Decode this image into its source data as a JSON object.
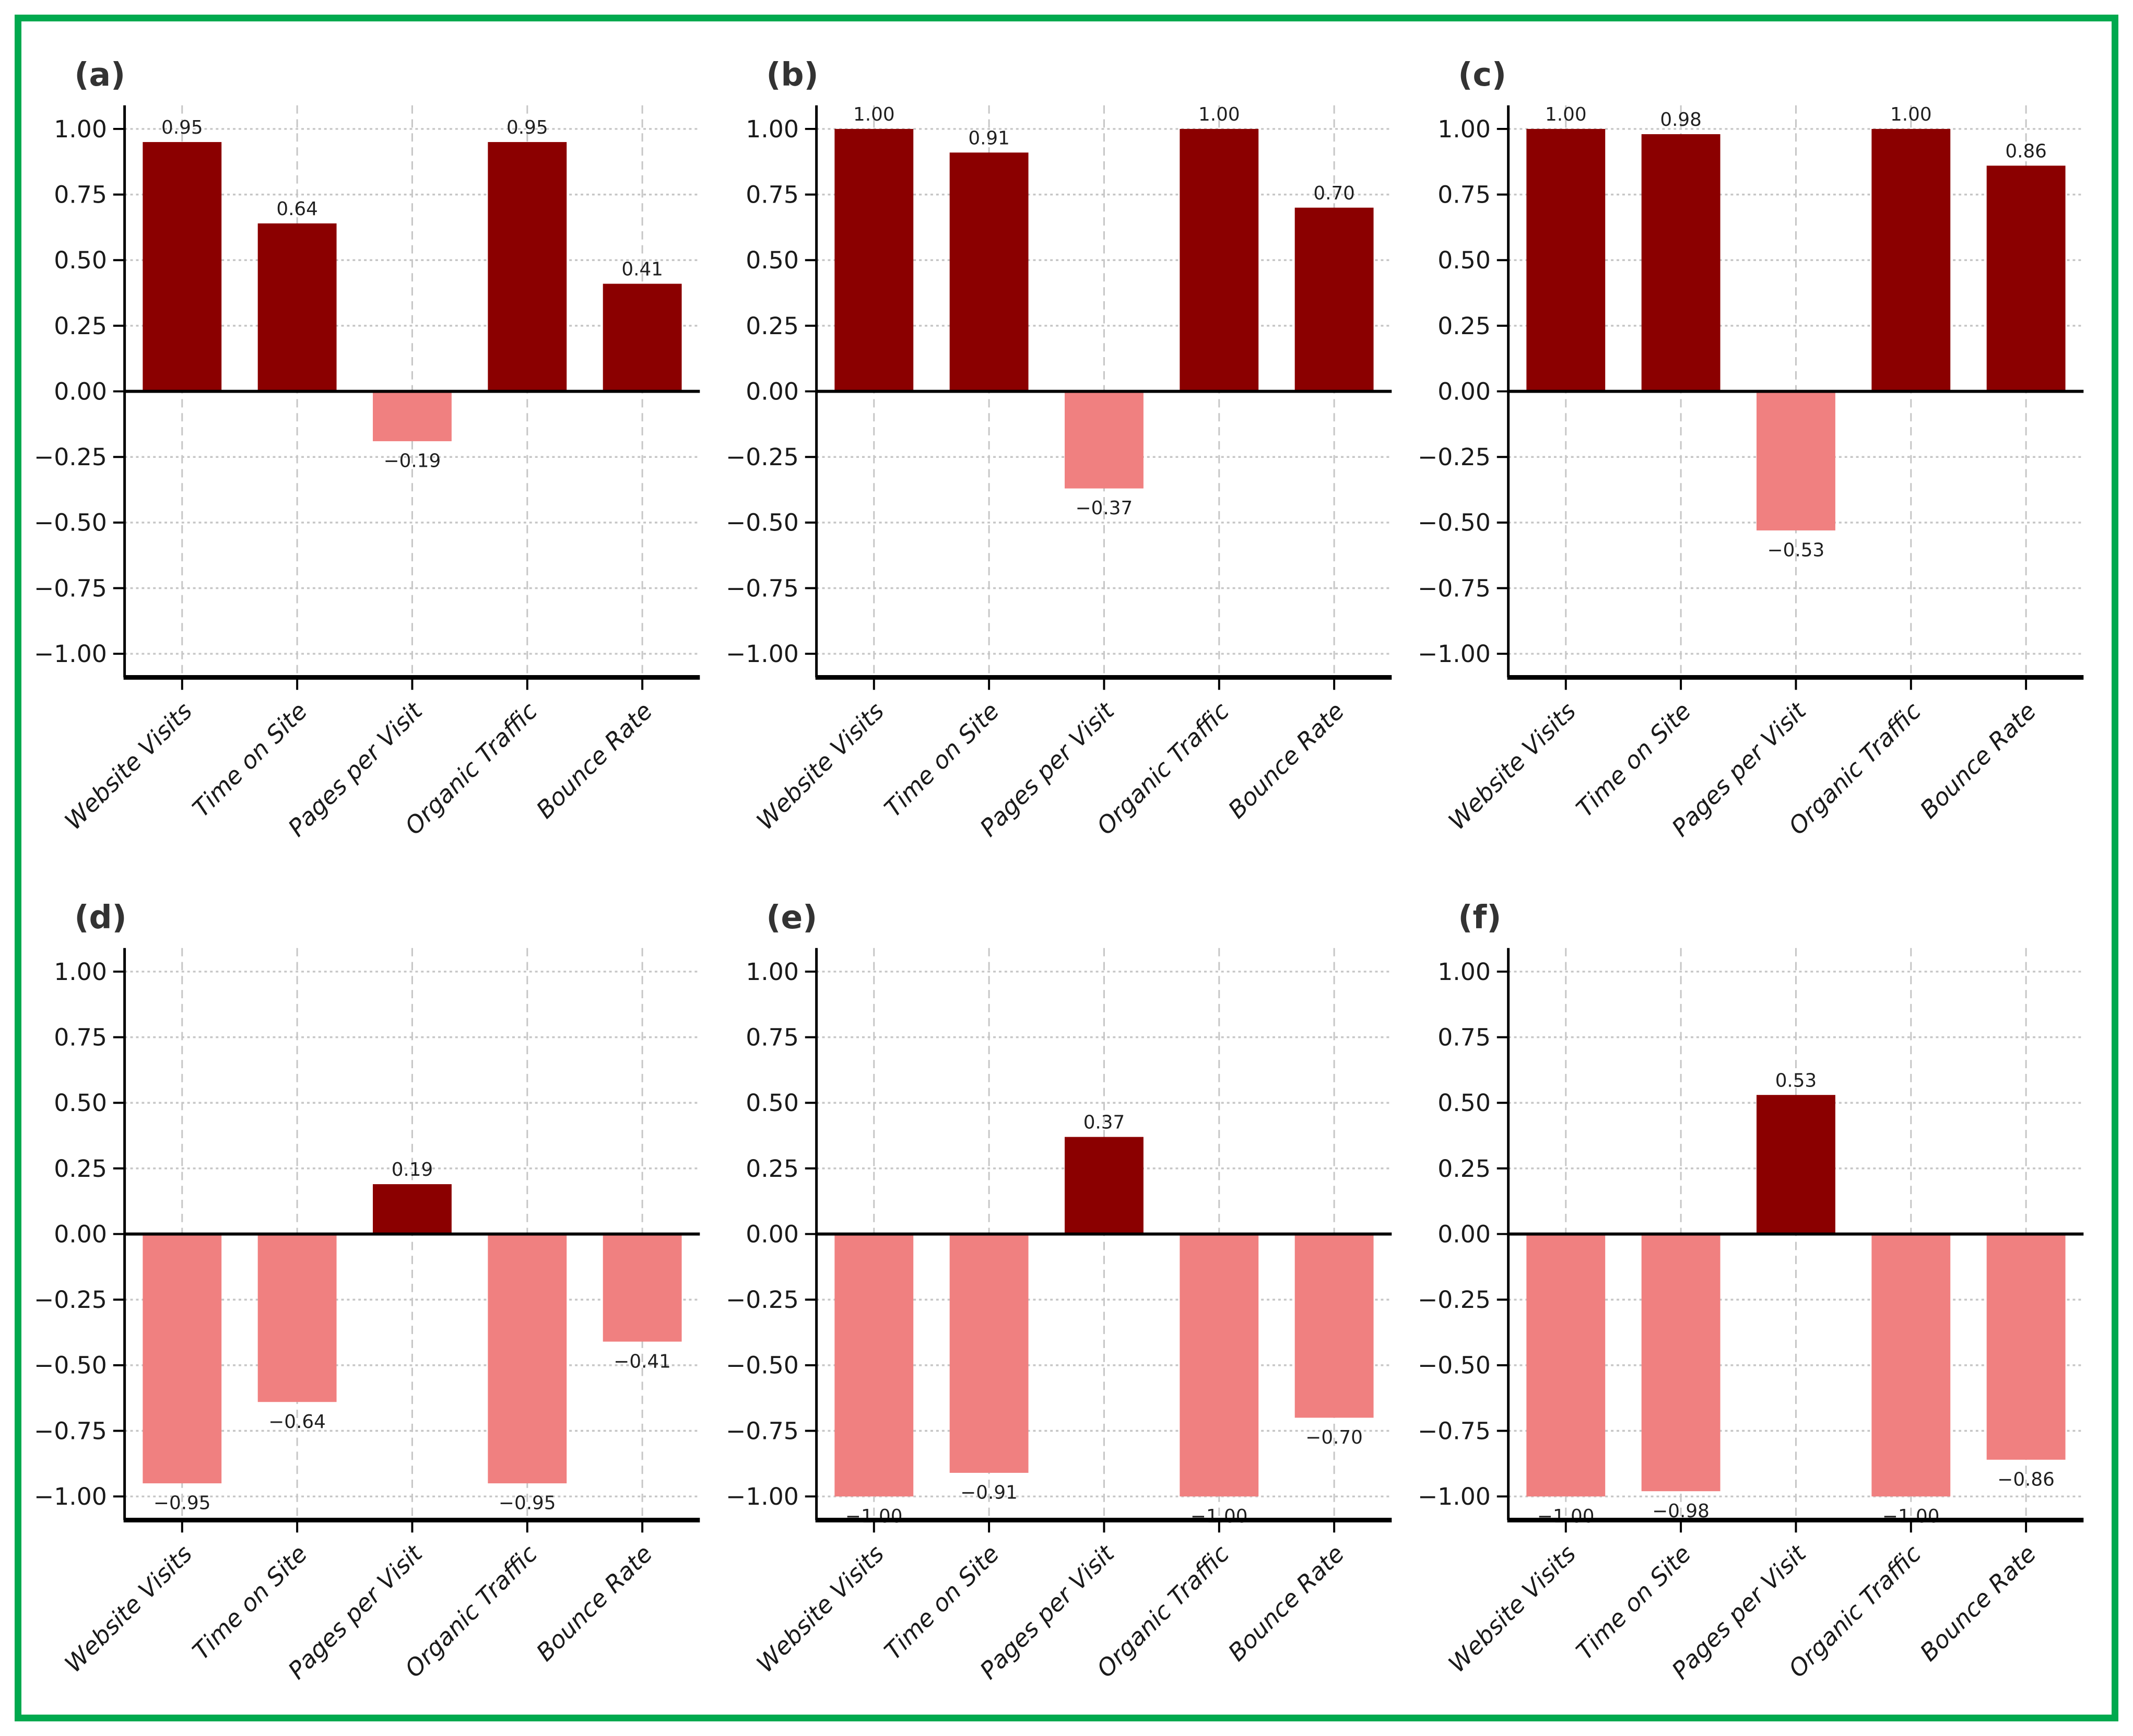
{
  "figure": {
    "border_color": "#00A94E",
    "background": "#ffffff"
  },
  "colors": {
    "positive_bar": "#8B0000",
    "negative_bar": "#F08080",
    "grid": "#c6c6c6",
    "axis": "#000000",
    "tick_text": "#1a1a1a",
    "panel_label_text": "#333333"
  },
  "categories": [
    "Website Visits",
    "Time on Site",
    "Pages per Visit",
    "Organic Traffic",
    "Bounce Rate"
  ],
  "axis": {
    "yticks": [
      1.0,
      0.75,
      0.5,
      0.25,
      0.0,
      -0.25,
      -0.5,
      -0.75,
      -1.0
    ],
    "ytick_labels": [
      "1.00",
      "0.75",
      "0.50",
      "0.25",
      "0.00",
      "−0.25",
      "−0.50",
      "−0.75",
      "−1.00"
    ],
    "ylim": [
      -1.09,
      1.09
    ],
    "grid": "dashed"
  },
  "chart_data": [
    {
      "type": "bar",
      "label": "(a)",
      "categories": [
        "Website Visits",
        "Time on Site",
        "Pages per Visit",
        "Organic Traffic",
        "Bounce Rate"
      ],
      "values": [
        0.95,
        0.64,
        -0.19,
        0.95,
        0.41
      ],
      "value_labels": [
        "0.95",
        "0.64",
        "−0.19",
        "0.95",
        "0.41"
      ],
      "ylim": [
        -1.09,
        1.09
      ]
    },
    {
      "type": "bar",
      "label": "(b)",
      "categories": [
        "Website Visits",
        "Time on Site",
        "Pages per Visit",
        "Organic Traffic",
        "Bounce Rate"
      ],
      "values": [
        1.0,
        0.91,
        -0.37,
        1.0,
        0.7
      ],
      "value_labels": [
        "1.00",
        "0.91",
        "−0.37",
        "1.00",
        "0.70"
      ],
      "ylim": [
        -1.09,
        1.09
      ]
    },
    {
      "type": "bar",
      "label": "(c)",
      "categories": [
        "Website Visits",
        "Time on Site",
        "Pages per Visit",
        "Organic Traffic",
        "Bounce Rate"
      ],
      "values": [
        1.0,
        0.98,
        -0.53,
        1.0,
        0.86
      ],
      "value_labels": [
        "1.00",
        "0.98",
        "−0.53",
        "1.00",
        "0.86"
      ],
      "ylim": [
        -1.09,
        1.09
      ]
    },
    {
      "type": "bar",
      "label": "(d)",
      "categories": [
        "Website Visits",
        "Time on Site",
        "Pages per Visit",
        "Organic Traffic",
        "Bounce Rate"
      ],
      "values": [
        -0.95,
        -0.64,
        0.19,
        -0.95,
        -0.41
      ],
      "value_labels": [
        "−0.95",
        "−0.64",
        "0.19",
        "−0.95",
        "−0.41"
      ],
      "ylim": [
        -1.09,
        1.09
      ]
    },
    {
      "type": "bar",
      "label": "(e)",
      "categories": [
        "Website Visits",
        "Time on Site",
        "Pages per Visit",
        "Organic Traffic",
        "Bounce Rate"
      ],
      "values": [
        -1.0,
        -0.91,
        0.37,
        -1.0,
        -0.7
      ],
      "value_labels": [
        "−1.00",
        "−0.91",
        "0.37",
        "−1.00",
        "−0.70"
      ],
      "ylim": [
        -1.09,
        1.09
      ]
    },
    {
      "type": "bar",
      "label": "(f)",
      "categories": [
        "Website Visits",
        "Time on Site",
        "Pages per Visit",
        "Organic Traffic",
        "Bounce Rate"
      ],
      "values": [
        -1.0,
        -0.98,
        0.53,
        -1.0,
        -0.86
      ],
      "value_labels": [
        "−1.00",
        "−0.98",
        "0.53",
        "−1.00",
        "−0.86"
      ],
      "ylim": [
        -1.09,
        1.09
      ]
    }
  ]
}
